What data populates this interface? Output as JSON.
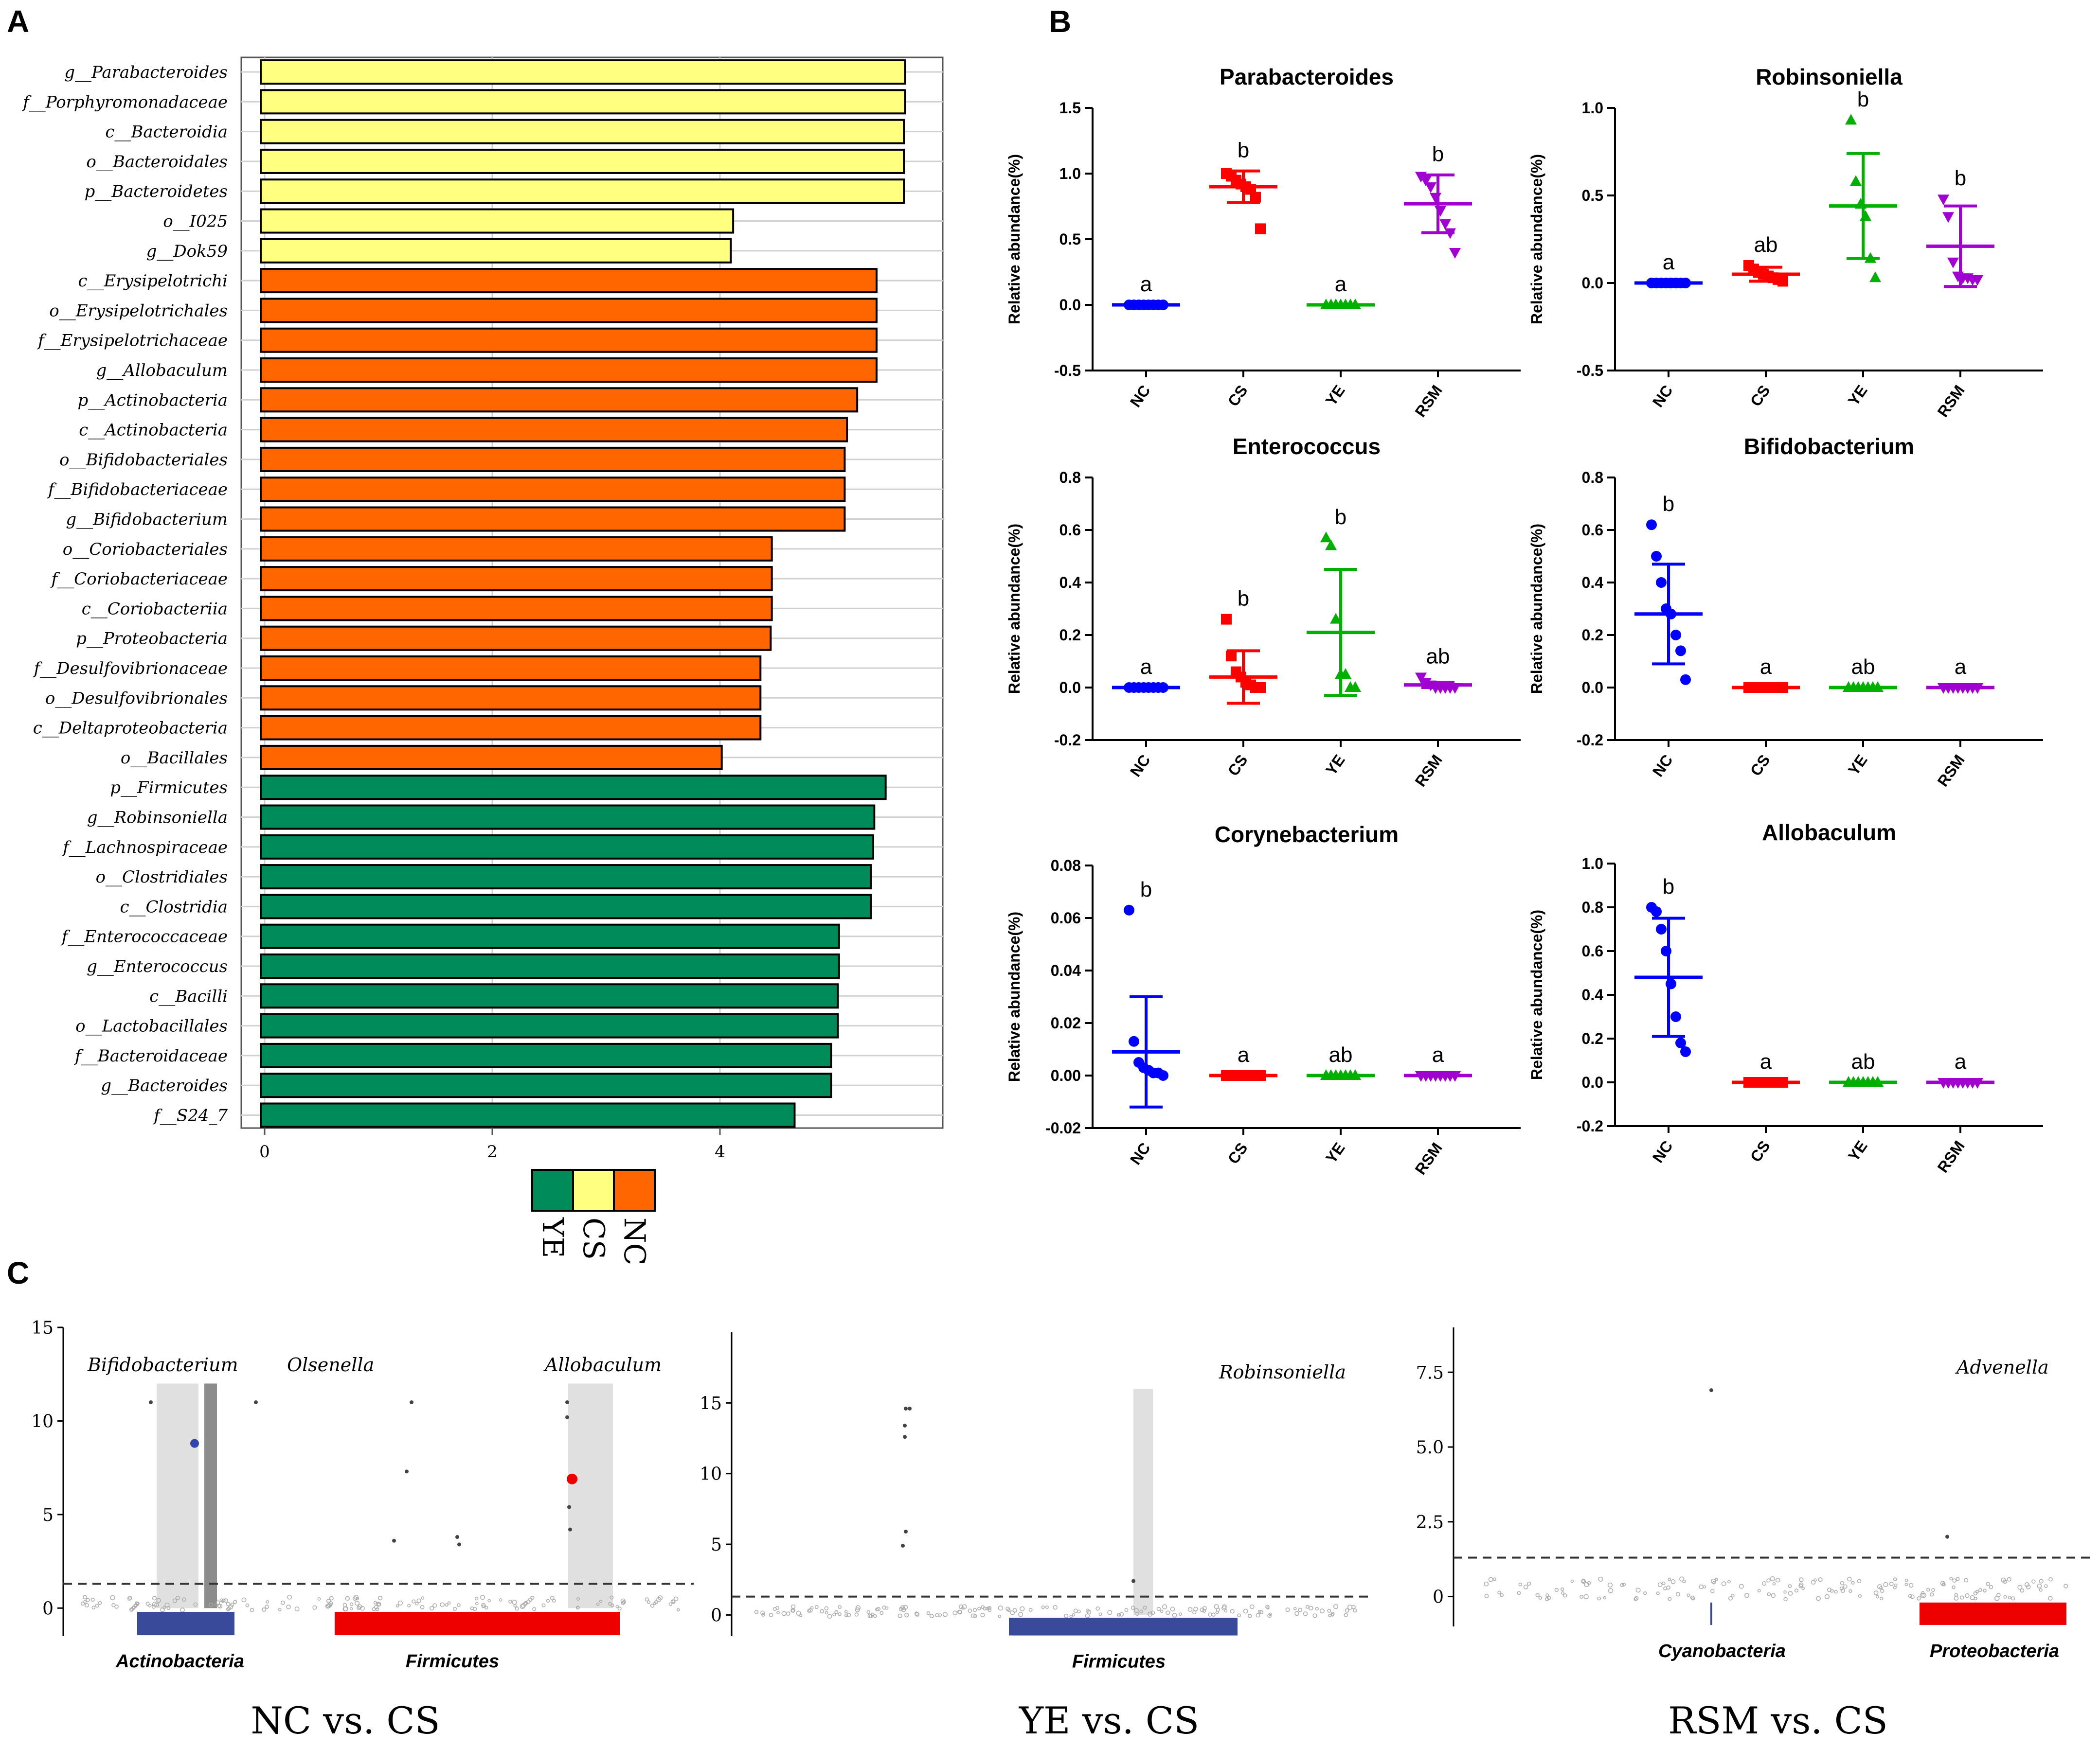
{
  "panels": {
    "a": "A",
    "b": "B",
    "c": "C"
  },
  "chart_data": [
    {
      "type": "bar",
      "orientation": "horizontal",
      "panel": "A",
      "title": "",
      "xlim": [
        0,
        6
      ],
      "xticks": [
        "0",
        "2",
        "4"
      ],
      "grid": true,
      "group_colors": {
        "CS": "#ffff80",
        "NC": "#ff6600",
        "YE": "#008c5a"
      },
      "legend": [
        "YE",
        "CS",
        "NC"
      ],
      "bars": [
        {
          "label": "g__Parabacteroides",
          "value": 5.66,
          "group": "CS"
        },
        {
          "label": "f__Porphyromonadaceae",
          "value": 5.66,
          "group": "CS"
        },
        {
          "label": "c__Bacteroidia",
          "value": 5.65,
          "group": "CS"
        },
        {
          "label": "o__Bacteroidales",
          "value": 5.65,
          "group": "CS"
        },
        {
          "label": "p__Bacteroidetes",
          "value": 5.65,
          "group": "CS"
        },
        {
          "label": "o__I025",
          "value": 4.15,
          "group": "CS"
        },
        {
          "label": "g__Dok59",
          "value": 4.13,
          "group": "CS"
        },
        {
          "label": "c__Erysipelotrichi",
          "value": 5.41,
          "group": "NC"
        },
        {
          "label": "o__Erysipelotrichales",
          "value": 5.41,
          "group": "NC"
        },
        {
          "label": "f__Erysipelotrichaceae",
          "value": 5.41,
          "group": "NC"
        },
        {
          "label": "g__Allobaculum",
          "value": 5.41,
          "group": "NC"
        },
        {
          "label": "p__Actinobacteria",
          "value": 5.24,
          "group": "NC"
        },
        {
          "label": "c__Actinobacteria",
          "value": 5.15,
          "group": "NC"
        },
        {
          "label": "o__Bifidobacteriales",
          "value": 5.13,
          "group": "NC"
        },
        {
          "label": "f__Bifidobacteriaceae",
          "value": 5.13,
          "group": "NC"
        },
        {
          "label": "g__Bifidobacterium",
          "value": 5.13,
          "group": "NC"
        },
        {
          "label": "o__Coriobacteriales",
          "value": 4.49,
          "group": "NC"
        },
        {
          "label": "f__Coriobacteriaceae",
          "value": 4.49,
          "group": "NC"
        },
        {
          "label": "c__Coriobacteriia",
          "value": 4.49,
          "group": "NC"
        },
        {
          "label": "p__Proteobacteria",
          "value": 4.48,
          "group": "NC"
        },
        {
          "label": "f__Desulfovibrionaceae",
          "value": 4.39,
          "group": "NC"
        },
        {
          "label": "o__Desulfovibrionales",
          "value": 4.39,
          "group": "NC"
        },
        {
          "label": "c__Deltaproteobacteria",
          "value": 4.39,
          "group": "NC"
        },
        {
          "label": "o__Bacillales",
          "value": 4.05,
          "group": "NC"
        },
        {
          "label": "p__Firmicutes",
          "value": 5.49,
          "group": "YE"
        },
        {
          "label": "g__Robinsoniella",
          "value": 5.39,
          "group": "YE"
        },
        {
          "label": "f__Lachnospiraceae",
          "value": 5.38,
          "group": "YE"
        },
        {
          "label": "o__Clostridiales",
          "value": 5.36,
          "group": "YE"
        },
        {
          "label": "c__Clostridia",
          "value": 5.36,
          "group": "YE"
        },
        {
          "label": "f__Enterococcaceae",
          "value": 5.08,
          "group": "YE"
        },
        {
          "label": "g__Enterococcus",
          "value": 5.08,
          "group": "YE"
        },
        {
          "label": "c__Bacilli",
          "value": 5.07,
          "group": "YE"
        },
        {
          "label": "o__Lactobacillales",
          "value": 5.07,
          "group": "YE"
        },
        {
          "label": "f__Bacteroidaceae",
          "value": 5.01,
          "group": "YE"
        },
        {
          "label": "g__Bacteroides",
          "value": 5.01,
          "group": "YE"
        },
        {
          "label": "f__S24_7",
          "value": 4.69,
          "group": "YE"
        }
      ]
    },
    {
      "type": "scatter",
      "panel": "B",
      "categories": [
        "NC",
        "CS",
        "YE",
        "RSM"
      ],
      "category_colors": [
        "#0000ff",
        "#ff0000",
        "#00b000",
        "#a000d0"
      ],
      "ylabel": "Relative abundance(%)",
      "subplots": [
        {
          "title": "Parabacteroides",
          "ylim": [
            -0.5,
            1.5
          ],
          "yticks": [
            "-0.5",
            "0.0",
            "0.5",
            "1.0",
            "1.5"
          ],
          "groups": [
            {
              "sig": "a",
              "mean": 0.0,
              "sd": 0.0,
              "points": [
                0,
                0,
                0,
                0,
                0,
                0,
                0,
                0
              ]
            },
            {
              "sig": "b",
              "mean": 0.9,
              "sd": 0.12,
              "points": [
                1.0,
                0.98,
                0.95,
                0.92,
                0.9,
                0.88,
                0.82,
                0.58
              ]
            },
            {
              "sig": "a",
              "mean": 0.0,
              "sd": 0.0,
              "points": [
                0,
                0,
                0,
                0,
                0,
                0,
                0
              ]
            },
            {
              "sig": "b",
              "mean": 0.77,
              "sd": 0.22,
              "points": [
                0.98,
                0.95,
                0.9,
                0.82,
                0.72,
                0.62,
                0.55,
                0.4
              ]
            }
          ]
        },
        {
          "title": "Robinsoniella",
          "ylim": [
            -0.5,
            1.0
          ],
          "yticks": [
            "-0.5",
            "0.0",
            "0.5",
            "1.0"
          ],
          "groups": [
            {
              "sig": "a",
              "mean": 0.0,
              "sd": 0.0,
              "points": [
                0,
                0,
                0,
                0,
                0,
                0,
                0,
                0
              ]
            },
            {
              "sig": "ab",
              "mean": 0.05,
              "sd": 0.04,
              "points": [
                0.1,
                0.08,
                0.06,
                0.05,
                0.04,
                0.03,
                0.02,
                0.01
              ]
            },
            {
              "sig": "b",
              "mean": 0.44,
              "sd": 0.3,
              "points": [
                0.93,
                0.58,
                0.45,
                0.38,
                0.14,
                0.03
              ]
            },
            {
              "sig": "b",
              "mean": 0.21,
              "sd": 0.23,
              "points": [
                0.48,
                0.38,
                0.12,
                0.04,
                0.03,
                0.03,
                0.02,
                0.02
              ]
            }
          ]
        },
        {
          "title": "Enterococcus",
          "ylim": [
            -0.2,
            0.8
          ],
          "yticks": [
            "-0.2",
            "0.0",
            "0.2",
            "0.4",
            "0.6",
            "0.8"
          ],
          "groups": [
            {
              "sig": "a",
              "mean": 0.0,
              "sd": 0.0,
              "points": [
                0,
                0,
                0,
                0,
                0,
                0,
                0,
                0
              ]
            },
            {
              "sig": "b",
              "mean": 0.04,
              "sd": 0.1,
              "points": [
                0.26,
                0.12,
                0.06,
                0.04,
                0.02,
                0.01,
                0.0,
                0.0
              ]
            },
            {
              "sig": "b",
              "mean": 0.21,
              "sd": 0.24,
              "points": [
                0.57,
                0.54,
                0.26,
                0.05,
                0.05,
                0.0,
                0.0
              ]
            },
            {
              "sig": "ab",
              "mean": 0.01,
              "sd": 0.01,
              "points": [
                0.04,
                0.02,
                0.01,
                0.0,
                0.0,
                0.0,
                0.0,
                0.0
              ]
            }
          ]
        },
        {
          "title": "Bifidobacterium",
          "ylim": [
            -0.2,
            0.8
          ],
          "yticks": [
            "-0.2",
            "0.0",
            "0.2",
            "0.4",
            "0.6",
            "0.8"
          ],
          "groups": [
            {
              "sig": "b",
              "mean": 0.28,
              "sd": 0.19,
              "points": [
                0.62,
                0.5,
                0.4,
                0.3,
                0.28,
                0.2,
                0.14,
                0.03
              ]
            },
            {
              "sig": "a",
              "mean": 0.0,
              "sd": 0.0,
              "points": [
                0,
                0,
                0,
                0,
                0,
                0,
                0,
                0
              ]
            },
            {
              "sig": "ab",
              "mean": 0.0,
              "sd": 0.0,
              "points": [
                0,
                0,
                0,
                0,
                0,
                0,
                0
              ]
            },
            {
              "sig": "a",
              "mean": 0.0,
              "sd": 0.0,
              "points": [
                0,
                0,
                0,
                0,
                0,
                0,
                0,
                0
              ]
            }
          ]
        },
        {
          "title": "Corynebacterium",
          "ylim": [
            -0.02,
            0.08
          ],
          "yticks": [
            "-0.02",
            "0.00",
            "0.02",
            "0.04",
            "0.06",
            "0.08"
          ],
          "groups": [
            {
              "sig": "b",
              "mean": 0.009,
              "sd": 0.021,
              "points": [
                0.063,
                0.013,
                0.005,
                0.003,
                0.002,
                0.001,
                0.001,
                0.0
              ]
            },
            {
              "sig": "a",
              "mean": 0.0,
              "sd": 0.0,
              "points": [
                0,
                0,
                0,
                0,
                0,
                0,
                0,
                0
              ]
            },
            {
              "sig": "ab",
              "mean": 0.0,
              "sd": 0.0,
              "points": [
                0,
                0,
                0,
                0,
                0,
                0,
                0
              ]
            },
            {
              "sig": "a",
              "mean": 0.0,
              "sd": 0.0,
              "points": [
                0,
                0,
                0,
                0,
                0,
                0,
                0,
                0
              ]
            }
          ]
        },
        {
          "title": "Allobaculum",
          "ylim": [
            -0.2,
            1.0
          ],
          "yticks": [
            "-0.2",
            "0.0",
            "0.2",
            "0.4",
            "0.6",
            "0.8",
            "1.0"
          ],
          "groups": [
            {
              "sig": "b",
              "mean": 0.48,
              "sd": 0.27,
              "points": [
                0.8,
                0.78,
                0.7,
                0.6,
                0.45,
                0.3,
                0.18,
                0.14
              ]
            },
            {
              "sig": "a",
              "mean": 0.0,
              "sd": 0.0,
              "points": [
                0,
                0,
                0,
                0,
                0,
                0,
                0,
                0
              ]
            },
            {
              "sig": "ab",
              "mean": 0.0,
              "sd": 0.0,
              "points": [
                0,
                0,
                0,
                0,
                0,
                0,
                0
              ]
            },
            {
              "sig": "a",
              "mean": 0.0,
              "sd": 0.0,
              "points": [
                0,
                0,
                0,
                0,
                0,
                0,
                0,
                0
              ]
            }
          ]
        }
      ]
    },
    {
      "type": "scatter",
      "subtype": "manhattan",
      "panel": "C",
      "plots": [
        {
          "title": "NC vs. CS",
          "ylim": [
            -1.5,
            15
          ],
          "yticks": [
            "0",
            "5",
            "10",
            "15"
          ],
          "threshold": 1.3,
          "annotations": [
            "Bifidobacterium",
            "Olsenella",
            "Allobaculum"
          ],
          "phyla": [
            "Actinobacteria",
            "Firmicutes"
          ]
        },
        {
          "title": "YE vs. CS",
          "ylim": [
            -1.5,
            20
          ],
          "yticks": [
            "0",
            "5",
            "10",
            "15"
          ],
          "threshold": 1.3,
          "annotations": [
            "Robinsoniella"
          ],
          "phyla": [
            "Firmicutes"
          ]
        },
        {
          "title": "RSM vs. CS",
          "ylim": [
            -1.0,
            9
          ],
          "yticks": [
            "0",
            "2.5",
            "5.0",
            "7.5"
          ],
          "threshold": 1.3,
          "annotations": [
            "Advenella"
          ],
          "phyla": [
            "Cyanobacteria",
            "Proteobacteria"
          ]
        }
      ]
    }
  ]
}
